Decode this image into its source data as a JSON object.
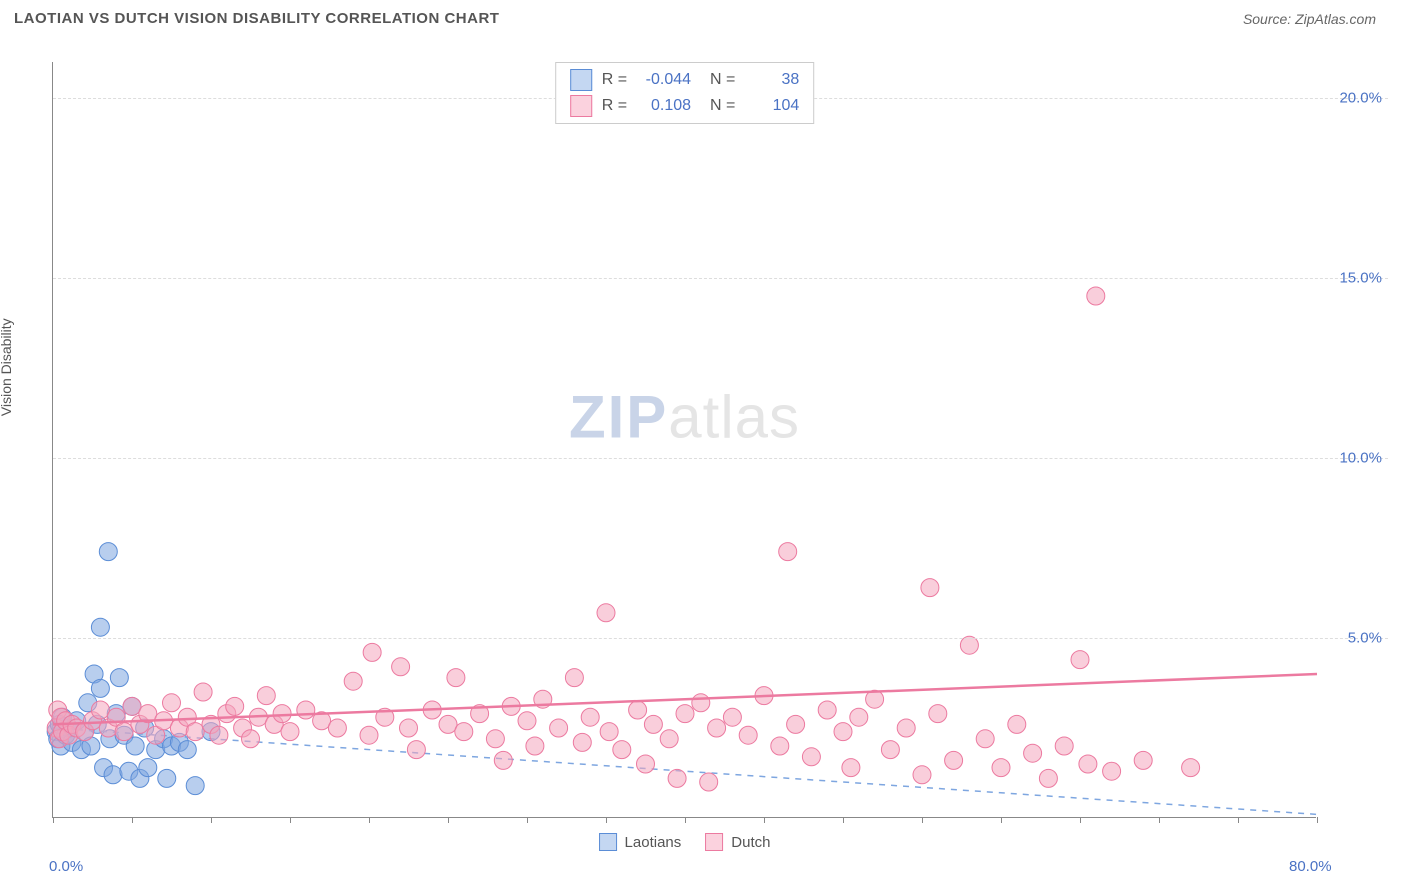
{
  "title": "LAOTIAN VS DUTCH VISION DISABILITY CORRELATION CHART",
  "source": "Source: ZipAtlas.com",
  "watermark": {
    "prefix": "ZIP",
    "suffix": "atlas"
  },
  "chart": {
    "type": "scatter",
    "y_label": "Vision Disability",
    "x_range": [
      0,
      80
    ],
    "y_range": [
      0,
      21
    ],
    "x_ticks": [
      0,
      5,
      10,
      15,
      20,
      25,
      30,
      35,
      40,
      45,
      50,
      55,
      60,
      65,
      70,
      75,
      80
    ],
    "x_tick_labels": {
      "0": "0.0%",
      "80": "80.0%"
    },
    "y_ticks": [
      5,
      10,
      15,
      20
    ],
    "y_tick_labels": {
      "5": "5.0%",
      "10": "10.0%",
      "15": "15.0%",
      "20": "20.0%"
    },
    "grid_color": "#dddddd",
    "background_color": "#ffffff",
    "axis_color": "#888888",
    "tick_label_color": "#4a72c4",
    "marker_radius": 9,
    "marker_opacity": 0.55,
    "series": [
      {
        "name": "Laotians",
        "color": "#7ea6e0",
        "stroke": "#5b8dd6",
        "R": "-0.044",
        "N": "38",
        "trend": {
          "y_at_x0": 2.5,
          "y_at_xmax": 0.1,
          "dash": "6,6",
          "width": 1.5,
          "color": "#7ea6e0"
        },
        "points": [
          [
            0.2,
            2.4
          ],
          [
            0.3,
            2.2
          ],
          [
            0.4,
            2.6
          ],
          [
            0.5,
            2.0
          ],
          [
            0.6,
            2.8
          ],
          [
            0.8,
            2.3
          ],
          [
            1.0,
            2.5
          ],
          [
            1.2,
            2.1
          ],
          [
            1.5,
            2.7
          ],
          [
            1.8,
            1.9
          ],
          [
            2.0,
            2.4
          ],
          [
            2.2,
            3.2
          ],
          [
            2.4,
            2.0
          ],
          [
            2.6,
            4.0
          ],
          [
            2.8,
            2.6
          ],
          [
            3.0,
            3.6
          ],
          [
            3.0,
            5.3
          ],
          [
            3.2,
            1.4
          ],
          [
            3.5,
            7.4
          ],
          [
            3.6,
            2.2
          ],
          [
            3.8,
            1.2
          ],
          [
            4.0,
            2.9
          ],
          [
            4.2,
            3.9
          ],
          [
            4.5,
            2.3
          ],
          [
            4.8,
            1.3
          ],
          [
            5.0,
            3.1
          ],
          [
            5.2,
            2.0
          ],
          [
            5.5,
            1.1
          ],
          [
            5.8,
            2.5
          ],
          [
            6.0,
            1.4
          ],
          [
            6.5,
            1.9
          ],
          [
            7.0,
            2.2
          ],
          [
            7.2,
            1.1
          ],
          [
            7.5,
            2.0
          ],
          [
            8.0,
            2.1
          ],
          [
            8.5,
            1.9
          ],
          [
            9.0,
            0.9
          ],
          [
            10.0,
            2.4
          ]
        ]
      },
      {
        "name": "Dutch",
        "color": "#f4a6bd",
        "stroke": "#ec7aa0",
        "R": "0.108",
        "N": "104",
        "trend": {
          "y_at_x0": 2.6,
          "y_at_xmax": 4.0,
          "dash": "none",
          "width": 2.5,
          "color": "#ec7aa0"
        },
        "points": [
          [
            0.2,
            2.5
          ],
          [
            0.3,
            3.0
          ],
          [
            0.4,
            2.2
          ],
          [
            0.5,
            2.8
          ],
          [
            0.6,
            2.4
          ],
          [
            0.8,
            2.7
          ],
          [
            1.0,
            2.3
          ],
          [
            1.2,
            2.6
          ],
          [
            1.5,
            2.5
          ],
          [
            2.0,
            2.4
          ],
          [
            2.5,
            2.7
          ],
          [
            3.0,
            3.0
          ],
          [
            3.5,
            2.5
          ],
          [
            4.0,
            2.8
          ],
          [
            4.5,
            2.4
          ],
          [
            5.0,
            3.1
          ],
          [
            5.5,
            2.6
          ],
          [
            6.0,
            2.9
          ],
          [
            6.5,
            2.3
          ],
          [
            7.0,
            2.7
          ],
          [
            7.5,
            3.2
          ],
          [
            8.0,
            2.5
          ],
          [
            8.5,
            2.8
          ],
          [
            9.0,
            2.4
          ],
          [
            9.5,
            3.5
          ],
          [
            10.0,
            2.6
          ],
          [
            10.5,
            2.3
          ],
          [
            11.0,
            2.9
          ],
          [
            11.5,
            3.1
          ],
          [
            12.0,
            2.5
          ],
          [
            12.5,
            2.2
          ],
          [
            13.0,
            2.8
          ],
          [
            13.5,
            3.4
          ],
          [
            14.0,
            2.6
          ],
          [
            14.5,
            2.9
          ],
          [
            15.0,
            2.4
          ],
          [
            16.0,
            3.0
          ],
          [
            17.0,
            2.7
          ],
          [
            18.0,
            2.5
          ],
          [
            19.0,
            3.8
          ],
          [
            20.0,
            2.3
          ],
          [
            20.2,
            4.6
          ],
          [
            21.0,
            2.8
          ],
          [
            22.0,
            4.2
          ],
          [
            22.5,
            2.5
          ],
          [
            23.0,
            1.9
          ],
          [
            24.0,
            3.0
          ],
          [
            25.0,
            2.6
          ],
          [
            25.5,
            3.9
          ],
          [
            26.0,
            2.4
          ],
          [
            27.0,
            2.9
          ],
          [
            28.0,
            2.2
          ],
          [
            28.5,
            1.6
          ],
          [
            29.0,
            3.1
          ],
          [
            30.0,
            2.7
          ],
          [
            30.5,
            2.0
          ],
          [
            31.0,
            3.3
          ],
          [
            32.0,
            2.5
          ],
          [
            33.0,
            3.9
          ],
          [
            33.5,
            2.1
          ],
          [
            34.0,
            2.8
          ],
          [
            35.0,
            5.7
          ],
          [
            35.2,
            2.4
          ],
          [
            36.0,
            1.9
          ],
          [
            37.0,
            3.0
          ],
          [
            37.5,
            1.5
          ],
          [
            38.0,
            2.6
          ],
          [
            39.0,
            2.2
          ],
          [
            39.5,
            1.1
          ],
          [
            40.0,
            2.9
          ],
          [
            41.0,
            3.2
          ],
          [
            41.5,
            1.0
          ],
          [
            42.0,
            2.5
          ],
          [
            43.0,
            2.8
          ],
          [
            44.0,
            2.3
          ],
          [
            45.0,
            3.4
          ],
          [
            46.0,
            2.0
          ],
          [
            46.5,
            7.4
          ],
          [
            47.0,
            2.6
          ],
          [
            48.0,
            1.7
          ],
          [
            49.0,
            3.0
          ],
          [
            50.0,
            2.4
          ],
          [
            50.5,
            1.4
          ],
          [
            51.0,
            2.8
          ],
          [
            52.0,
            3.3
          ],
          [
            53.0,
            1.9
          ],
          [
            54.0,
            2.5
          ],
          [
            55.0,
            1.2
          ],
          [
            55.5,
            6.4
          ],
          [
            56.0,
            2.9
          ],
          [
            57.0,
            1.6
          ],
          [
            58.0,
            4.8
          ],
          [
            59.0,
            2.2
          ],
          [
            60.0,
            1.4
          ],
          [
            61.0,
            2.6
          ],
          [
            62.0,
            1.8
          ],
          [
            63.0,
            1.1
          ],
          [
            64.0,
            2.0
          ],
          [
            65.0,
            4.4
          ],
          [
            65.5,
            1.5
          ],
          [
            66.0,
            14.5
          ],
          [
            67.0,
            1.3
          ],
          [
            69.0,
            1.6
          ],
          [
            72.0,
            1.4
          ]
        ]
      }
    ]
  },
  "legend_bottom": [
    {
      "label": "Laotians",
      "fill": "#c4d7f2",
      "stroke": "#5b8dd6"
    },
    {
      "label": "Dutch",
      "fill": "#fbd2de",
      "stroke": "#ec7aa0"
    }
  ],
  "legend_top": [
    {
      "fill": "#c4d7f2",
      "stroke": "#5b8dd6",
      "R": "-0.044",
      "N": "38"
    },
    {
      "fill": "#fbd2de",
      "stroke": "#ec7aa0",
      "R": "0.108",
      "N": "104"
    }
  ]
}
